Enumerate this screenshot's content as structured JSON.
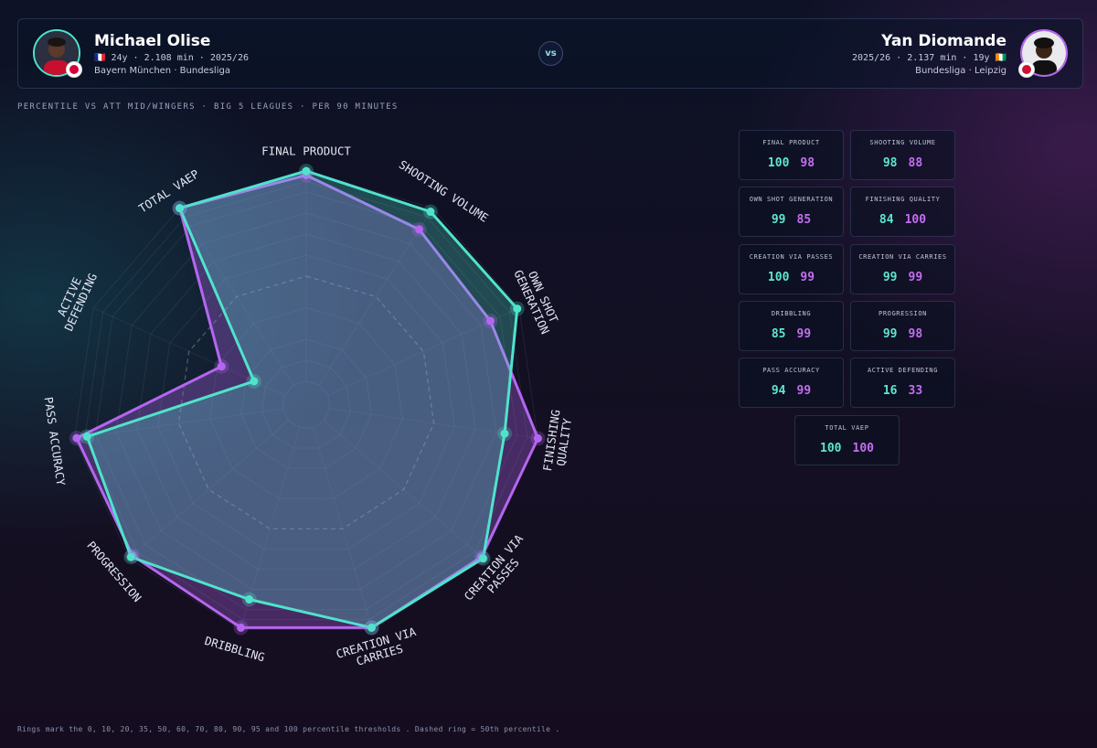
{
  "player_a": {
    "name": "Michael Olise",
    "meta": "🇫🇷 24y · 2.108 min · 2025/26",
    "team": "Bayern München · Bundesliga",
    "color": "#4fe3cc"
  },
  "player_b": {
    "name": "Yan Diomande",
    "meta": "2025/26 · 2.137 min · 19y 🇨🇮",
    "team": "Bundesliga · Leipzig",
    "color": "#b566f0"
  },
  "vs_label": "vs",
  "subtitle": "PERCENTILE VS ATT MID/WINGERS · BIG 5 LEAGUES · PER 90 MINUTES",
  "footnote": "Rings mark the 0, 10, 20, 35, 50, 60, 70, 80, 90, 95 and 100 percentile thresholds . Dashed ring = 50th percentile .",
  "chart_data": {
    "type": "radar",
    "categories": [
      "FINAL PRODUCT",
      "SHOOTING VOLUME",
      "OWN SHOT GENERATION",
      "FINISHING QUALITY",
      "CREATION VIA PASSES",
      "CREATION VIA CARRIES",
      "DRIBBLING",
      "PROGRESSION",
      "PASS ACCURACY",
      "ACTIVE DEFENDING",
      "TOTAL VAEP"
    ],
    "axis_labels": [
      [
        "FINAL PRODUCT"
      ],
      [
        "SHOOTING VOLUME"
      ],
      [
        "OWN SHOT",
        "GENERATION"
      ],
      [
        "FINISHING",
        "QUALITY"
      ],
      [
        "CREATION VIA",
        "PASSES"
      ],
      [
        "CREATION VIA",
        "CARRIES"
      ],
      [
        "DRIBBLING"
      ],
      [
        "PROGRESSION"
      ],
      [
        "PASS ACCURACY"
      ],
      [
        "ACTIVE",
        "DEFENDING"
      ],
      [
        "TOTAL VAEP"
      ]
    ],
    "rings": [
      0,
      10,
      20,
      35,
      50,
      60,
      70,
      80,
      90,
      95,
      100
    ],
    "dashed_ring": 50,
    "series": [
      {
        "name": "Michael Olise",
        "color": "#4fe3cc",
        "values": [
          100,
          98,
          99,
          84,
          100,
          99,
          85,
          99,
          94,
          16,
          100
        ]
      },
      {
        "name": "Yan Diomande",
        "color": "#b566f0",
        "values": [
          98,
          88,
          85,
          100,
          99,
          99,
          99,
          98,
          99,
          33,
          100
        ]
      }
    ]
  },
  "cards": [
    {
      "label": "FINAL PRODUCT",
      "a": "100",
      "b": "98"
    },
    {
      "label": "SHOOTING VOLUME",
      "a": "98",
      "b": "88"
    },
    {
      "label": "OWN SHOT GENERATION",
      "a": "99",
      "b": "85"
    },
    {
      "label": "FINISHING QUALITY",
      "a": "84",
      "b": "100"
    },
    {
      "label": "CREATION VIA PASSES",
      "a": "100",
      "b": "99"
    },
    {
      "label": "CREATION VIA CARRIES",
      "a": "99",
      "b": "99"
    },
    {
      "label": "DRIBBLING",
      "a": "85",
      "b": "99"
    },
    {
      "label": "PROGRESSION",
      "a": "99",
      "b": "98"
    },
    {
      "label": "PASS ACCURACY",
      "a": "94",
      "b": "99"
    },
    {
      "label": "ACTIVE DEFENDING",
      "a": "16",
      "b": "33"
    },
    {
      "label": "TOTAL VAEP",
      "a": "100",
      "b": "100"
    }
  ]
}
